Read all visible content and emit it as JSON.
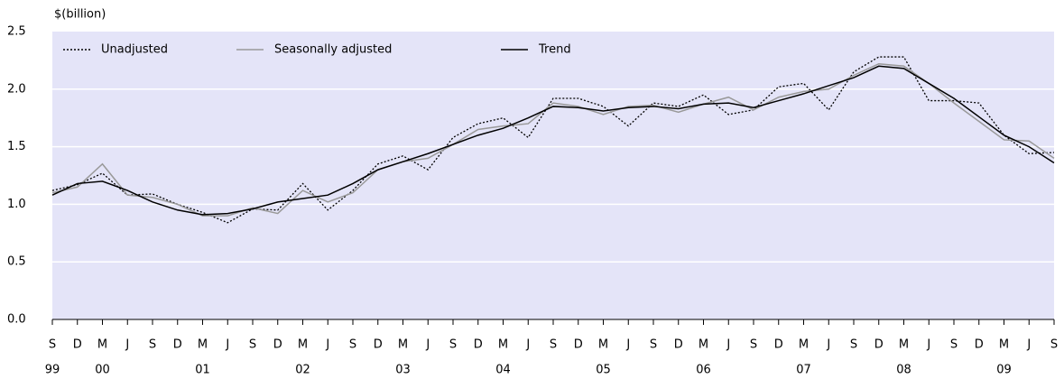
{
  "chart_data": {
    "type": "line",
    "y_axis_label": "$(billion)",
    "categories": [
      "S",
      "D",
      "M",
      "J",
      "S",
      "D",
      "M",
      "J",
      "S",
      "D",
      "M",
      "J",
      "S",
      "D",
      "M",
      "J",
      "S",
      "D",
      "M",
      "J",
      "S",
      "D",
      "M",
      "J",
      "S",
      "D",
      "M",
      "J",
      "S",
      "D",
      "M",
      "J",
      "S",
      "D",
      "M",
      "J",
      "S",
      "D",
      "M",
      "J",
      "S"
    ],
    "year_labels": [
      "99",
      null,
      "00",
      null,
      null,
      null,
      "01",
      null,
      null,
      null,
      "02",
      null,
      null,
      null,
      "03",
      null,
      null,
      null,
      "04",
      null,
      null,
      null,
      "05",
      null,
      null,
      null,
      "06",
      null,
      null,
      null,
      "07",
      null,
      null,
      null,
      "08",
      null,
      null,
      null,
      "09",
      null,
      null
    ],
    "series": [
      {
        "name": "Unadjusted",
        "color": "#000000",
        "style": "dotted",
        "values": [
          1.12,
          1.17,
          1.27,
          1.08,
          1.09,
          1.0,
          0.93,
          0.84,
          0.96,
          0.95,
          1.18,
          0.95,
          1.12,
          1.35,
          1.42,
          1.3,
          1.58,
          1.7,
          1.75,
          1.58,
          1.92,
          1.92,
          1.85,
          1.68,
          1.88,
          1.85,
          1.95,
          1.78,
          1.82,
          2.02,
          2.05,
          1.82,
          2.15,
          2.28,
          2.28,
          1.9,
          1.9,
          1.88,
          1.6,
          1.44,
          1.45
        ]
      },
      {
        "name": "Seasonally adjusted",
        "color": "#999999",
        "style": "solid",
        "values": [
          1.1,
          1.15,
          1.35,
          1.08,
          1.06,
          1.0,
          0.9,
          0.9,
          0.97,
          0.92,
          1.12,
          1.02,
          1.1,
          1.3,
          1.37,
          1.4,
          1.52,
          1.65,
          1.68,
          1.7,
          1.88,
          1.85,
          1.78,
          1.85,
          1.86,
          1.8,
          1.87,
          1.93,
          1.82,
          1.93,
          1.98,
          2.0,
          2.12,
          2.22,
          2.2,
          2.05,
          1.88,
          1.72,
          1.56,
          1.55,
          1.4
        ]
      },
      {
        "name": "Trend",
        "color": "#000000",
        "style": "solid",
        "values": [
          1.08,
          1.18,
          1.2,
          1.12,
          1.02,
          0.95,
          0.91,
          0.92,
          0.96,
          1.02,
          1.05,
          1.08,
          1.18,
          1.3,
          1.37,
          1.44,
          1.52,
          1.6,
          1.66,
          1.75,
          1.85,
          1.84,
          1.81,
          1.84,
          1.85,
          1.83,
          1.87,
          1.88,
          1.84,
          1.9,
          1.96,
          2.03,
          2.1,
          2.2,
          2.18,
          2.05,
          1.92,
          1.76,
          1.6,
          1.5,
          1.36
        ]
      }
    ],
    "ylim": [
      0,
      2.5
    ],
    "yticks": [
      {
        "value": 0,
        "label": "0.0"
      },
      0.5,
      {
        "value": 1,
        "label": "1.0"
      },
      1.5,
      {
        "value": 2,
        "label": "2.0"
      },
      2.5
    ],
    "grid": true,
    "legend": "top-left",
    "background": "#e4e4f8"
  }
}
